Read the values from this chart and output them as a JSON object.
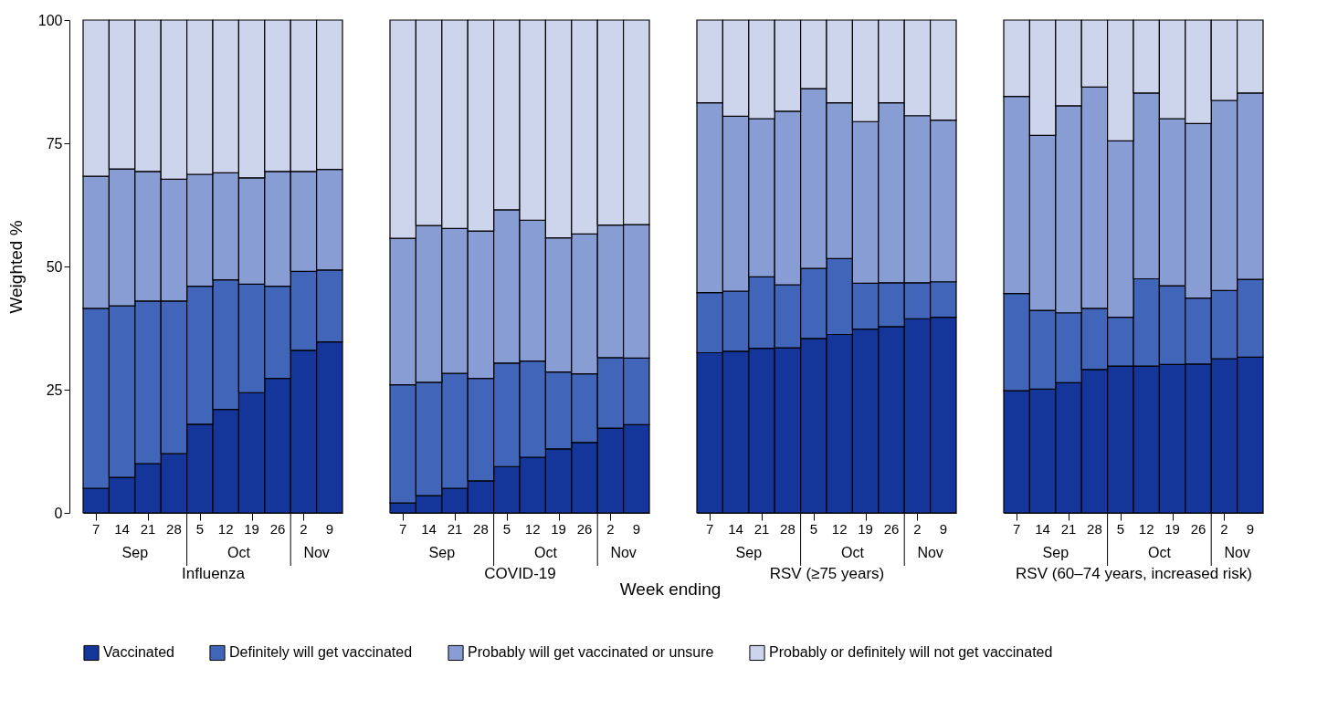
{
  "chart_data": [
    {
      "type": "bar",
      "stacked": true,
      "xlabel": "Influenza",
      "ylabel": "Weighted %",
      "ylim": [
        0,
        100
      ],
      "yticks": [
        0,
        25,
        50,
        75,
        100
      ],
      "legend": "bottom",
      "categories": [
        "7",
        "14",
        "21",
        "28",
        "5",
        "12",
        "19",
        "26",
        "2",
        "9"
      ],
      "annotations": [
        "Sep",
        "Oct",
        "Nov",
        "Week ending"
      ],
      "series": [
        {
          "name": "Vaccinated",
          "color": "#14359a",
          "values": [
            5,
            7.2,
            10,
            12,
            18,
            21,
            24.4,
            27.3,
            33,
            34.7
          ]
        },
        {
          "name": "Definitely will get vaccinated",
          "color": "#4065b9",
          "values": [
            36.5,
            34.8,
            33,
            31,
            28,
            26.3,
            22,
            18.7,
            16,
            14.6
          ]
        },
        {
          "name": "Probably will get vaccinated or unsure",
          "color": "#889dd4",
          "values": [
            26.8,
            27.8,
            26.3,
            24.7,
            22.7,
            21.7,
            21.6,
            23.3,
            20.3,
            20.4
          ]
        },
        {
          "name": "Probably or definitely will not get vaccinated",
          "color": "#cdd5ec",
          "values": [
            31.7,
            30.2,
            30.7,
            32.3,
            31.3,
            31,
            32,
            30.7,
            30.7,
            30.3
          ]
        }
      ]
    },
    {
      "type": "bar",
      "stacked": true,
      "xlabel": "COVID-19",
      "ylim": [
        0,
        100
      ],
      "yticks": [
        0,
        25,
        50,
        75,
        100
      ],
      "tick_labels": "x",
      "categories": [
        "7",
        "14",
        "21",
        "28",
        "5",
        "12",
        "19",
        "26",
        "2",
        "9"
      ],
      "annotations": [
        "Sep",
        "Oct",
        "Nov"
      ],
      "series": [
        {
          "name": "Vaccinated",
          "color": "#14359a",
          "values": [
            2,
            3.5,
            5,
            6.5,
            9.4,
            11.3,
            13,
            14.3,
            17.2,
            17.9
          ]
        },
        {
          "name": "Definitely will get vaccinated",
          "color": "#4065b9",
          "values": [
            24,
            23,
            23.3,
            20.8,
            21,
            19.5,
            15.6,
            13.9,
            14.3,
            13.5
          ]
        },
        {
          "name": "Probably will get vaccinated or unsure",
          "color": "#889dd4",
          "values": [
            29.7,
            31.8,
            29.4,
            29.9,
            31.1,
            28.6,
            27.2,
            28.4,
            26.9,
            27.1
          ]
        },
        {
          "name": "Probably or definitely will not get vaccinated",
          "color": "#cdd5ec",
          "values": [
            44.3,
            41.7,
            42.3,
            42.8,
            38.5,
            40.6,
            44.2,
            43.4,
            41.6,
            41.5
          ]
        }
      ]
    },
    {
      "type": "bar",
      "stacked": true,
      "xlabel": "RSV (≥75 years)",
      "ylim": [
        0,
        100
      ],
      "yticks": [
        0,
        25,
        50,
        75,
        100
      ],
      "tick_labels": "x",
      "categories": [
        "7",
        "14",
        "21",
        "28",
        "5",
        "12",
        "19",
        "26",
        "2",
        "9"
      ],
      "annotations": [
        "Sep",
        "Oct",
        "Nov"
      ],
      "series": [
        {
          "name": "Vaccinated",
          "color": "#14359a",
          "values": [
            32.5,
            32.8,
            33.4,
            33.5,
            35.4,
            36.2,
            37.3,
            37.8,
            39.4,
            39.7
          ]
        },
        {
          "name": "Definitely will get vaccinated",
          "color": "#4065b9",
          "values": [
            12.2,
            12.2,
            14.5,
            12.8,
            14.2,
            15.4,
            9.3,
            8.9,
            7.3,
            7.2
          ]
        },
        {
          "name": "Probably will get vaccinated or unsure",
          "color": "#889dd4",
          "values": [
            38.5,
            35.5,
            32.1,
            35.2,
            36.5,
            31.6,
            32.8,
            36.5,
            33.9,
            32.8
          ]
        },
        {
          "name": "Probably or definitely will not get vaccinated",
          "color": "#cdd5ec",
          "values": [
            16.8,
            19.5,
            20,
            18.5,
            13.9,
            16.8,
            20.6,
            16.8,
            19.4,
            20.3
          ]
        }
      ]
    },
    {
      "type": "bar",
      "stacked": true,
      "xlabel": "RSV (60–74 years, increased risk)",
      "ylim": [
        0,
        100
      ],
      "yticks": [
        0,
        25,
        50,
        75,
        100
      ],
      "tick_labels": "x",
      "categories": [
        "7",
        "14",
        "21",
        "28",
        "5",
        "12",
        "19",
        "26",
        "2",
        "9"
      ],
      "annotations": [
        "Sep",
        "Oct",
        "Nov"
      ],
      "series": [
        {
          "name": "Vaccinated",
          "color": "#14359a",
          "values": [
            24.8,
            25.1,
            26.4,
            29.1,
            29.8,
            29.8,
            30.1,
            30.2,
            31.3,
            31.6
          ]
        },
        {
          "name": "Definitely will get vaccinated",
          "color": "#4065b9",
          "values": [
            19.7,
            16,
            14.2,
            12.4,
            9.9,
            17.7,
            16,
            13.4,
            13.8,
            15.8
          ]
        },
        {
          "name": "Probably will get vaccinated or unsure",
          "color": "#889dd4",
          "values": [
            40,
            35.5,
            42,
            44.9,
            35.8,
            37.7,
            33.9,
            35.4,
            38.6,
            37.8
          ]
        },
        {
          "name": "Probably or definitely will not get vaccinated",
          "color": "#cdd5ec",
          "values": [
            15.5,
            23.4,
            17.4,
            13.6,
            24.5,
            14.8,
            20,
            21,
            16.3,
            14.8
          ]
        }
      ]
    }
  ]
}
